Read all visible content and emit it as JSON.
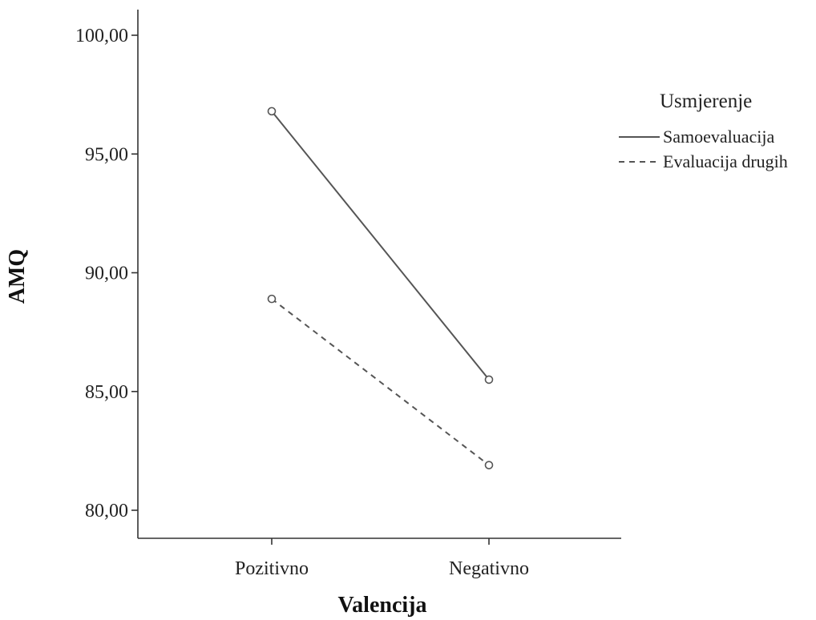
{
  "chart_data": {
    "type": "line",
    "xlabel": "Valencija",
    "ylabel": "AMQ",
    "categories": [
      "Pozitivno",
      "Negativno"
    ],
    "ylim": [
      79,
      101
    ],
    "yticks": [
      80,
      85,
      90,
      95,
      100
    ],
    "ytick_labels": [
      "80,00",
      "85,00",
      "90,00",
      "95,00",
      "100,00"
    ],
    "grid": false,
    "legend": {
      "title": "Usmjerenje",
      "position": "right"
    },
    "series": [
      {
        "name": "Samoevaluacija",
        "values": [
          96.8,
          85.5
        ],
        "style": "solid",
        "color": "#555555"
      },
      {
        "name": "Evaluacija drugih",
        "values": [
          88.9,
          81.9
        ],
        "style": "dashed",
        "color": "#555555"
      }
    ]
  }
}
